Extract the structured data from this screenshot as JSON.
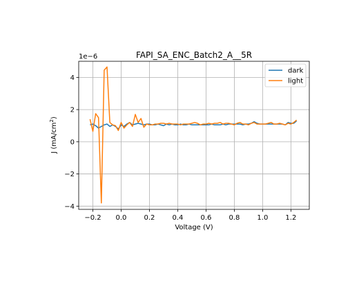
{
  "chart_data": {
    "type": "line",
    "title": "FAPI_SA_ENC_Batch2_A__5R",
    "xlabel": "Voltage (V)",
    "ylabel_base": "J (mA/cm",
    "ylabel_sup": "2",
    "ylabel_close": ")",
    "offset_text": "1e−6",
    "xlim": [
      -0.3,
      1.33
    ],
    "ylim": [
      -4.2,
      5.0
    ],
    "x_ticks": [
      -0.2,
      0.0,
      0.2,
      0.4,
      0.6,
      0.8,
      1.0,
      1.2
    ],
    "x_tick_labels": [
      "−0.2",
      "0.0",
      "0.2",
      "0.4",
      "0.6",
      "0.8",
      "1.0",
      "1.2"
    ],
    "y_ticks": [
      -4,
      -2,
      0,
      2,
      4
    ],
    "y_tick_labels": [
      "−4",
      "−2",
      "0",
      "2",
      "4"
    ],
    "grid": true,
    "legend_position": "top-right",
    "series": [
      {
        "name": "dark",
        "color": "#1f77b4",
        "x": [
          -0.22,
          -0.2,
          -0.18,
          -0.16,
          -0.14,
          -0.12,
          -0.1,
          -0.08,
          -0.06,
          -0.04,
          -0.02,
          0.0,
          0.02,
          0.04,
          0.06,
          0.08,
          0.1,
          0.12,
          0.14,
          0.16,
          0.18,
          0.2,
          0.22,
          0.24,
          0.26,
          0.28,
          0.3,
          0.32,
          0.34,
          0.36,
          0.38,
          0.4,
          0.42,
          0.44,
          0.46,
          0.48,
          0.5,
          0.52,
          0.54,
          0.56,
          0.58,
          0.6,
          0.62,
          0.64,
          0.66,
          0.68,
          0.7,
          0.72,
          0.74,
          0.76,
          0.78,
          0.8,
          0.82,
          0.84,
          0.86,
          0.88,
          0.9,
          0.92,
          0.94,
          0.96,
          0.98,
          1.0,
          1.02,
          1.04,
          1.06,
          1.08,
          1.1,
          1.12,
          1.14,
          1.16,
          1.18,
          1.2,
          1.22,
          1.24
        ],
        "y": [
          1.05,
          1.1,
          1.0,
          0.85,
          0.95,
          1.05,
          1.1,
          0.95,
          1.05,
          0.95,
          0.8,
          1.05,
          0.95,
          1.1,
          1.2,
          1.05,
          1.1,
          1.15,
          1.1,
          1.05,
          1.1,
          1.1,
          1.05,
          1.05,
          1.1,
          1.05,
          1.0,
          1.1,
          1.05,
          1.1,
          1.05,
          1.05,
          1.1,
          1.05,
          1.05,
          1.1,
          1.05,
          1.05,
          1.05,
          1.05,
          1.05,
          1.05,
          1.05,
          1.1,
          1.05,
          1.05,
          1.05,
          1.1,
          1.05,
          1.1,
          1.1,
          1.1,
          1.1,
          1.1,
          1.05,
          1.1,
          1.1,
          1.15,
          1.25,
          1.15,
          1.1,
          1.1,
          1.1,
          1.1,
          1.1,
          1.1,
          1.1,
          1.1,
          1.1,
          1.05,
          1.2,
          1.15,
          1.15,
          1.3
        ]
      },
      {
        "name": "light",
        "color": "#ff7f0e",
        "x": [
          -0.22,
          -0.2,
          -0.18,
          -0.16,
          -0.14,
          -0.12,
          -0.1,
          -0.08,
          -0.06,
          -0.04,
          -0.02,
          0.0,
          0.02,
          0.04,
          0.06,
          0.08,
          0.1,
          0.12,
          0.14,
          0.16,
          0.18,
          0.2,
          0.22,
          0.24,
          0.26,
          0.28,
          0.3,
          0.32,
          0.34,
          0.36,
          0.38,
          0.4,
          0.42,
          0.44,
          0.46,
          0.48,
          0.5,
          0.52,
          0.54,
          0.56,
          0.58,
          0.6,
          0.62,
          0.64,
          0.66,
          0.68,
          0.7,
          0.72,
          0.74,
          0.76,
          0.78,
          0.8,
          0.82,
          0.84,
          0.86,
          0.88,
          0.9,
          0.92,
          0.94,
          0.96,
          0.98,
          1.0,
          1.02,
          1.04,
          1.06,
          1.08,
          1.1,
          1.12,
          1.14,
          1.16,
          1.18,
          1.2,
          1.22,
          1.24
        ],
        "y": [
          1.4,
          0.65,
          1.75,
          1.5,
          -3.8,
          4.45,
          4.65,
          1.2,
          1.05,
          1.0,
          0.7,
          1.2,
          0.85,
          1.05,
          1.2,
          0.95,
          1.7,
          1.2,
          1.45,
          0.9,
          1.1,
          1.05,
          1.05,
          1.1,
          1.1,
          1.15,
          1.15,
          1.1,
          1.15,
          1.1,
          1.1,
          1.1,
          1.05,
          1.1,
          1.1,
          1.1,
          1.15,
          1.2,
          1.15,
          1.05,
          1.1,
          1.1,
          1.15,
          1.1,
          1.15,
          1.15,
          1.2,
          1.1,
          1.15,
          1.15,
          1.1,
          1.05,
          1.15,
          1.2,
          1.1,
          1.1,
          1.05,
          1.15,
          1.2,
          1.1,
          1.1,
          1.1,
          1.1,
          1.15,
          1.2,
          1.1,
          1.1,
          1.15,
          1.1,
          1.05,
          1.15,
          1.1,
          1.2,
          1.35
        ]
      }
    ]
  }
}
